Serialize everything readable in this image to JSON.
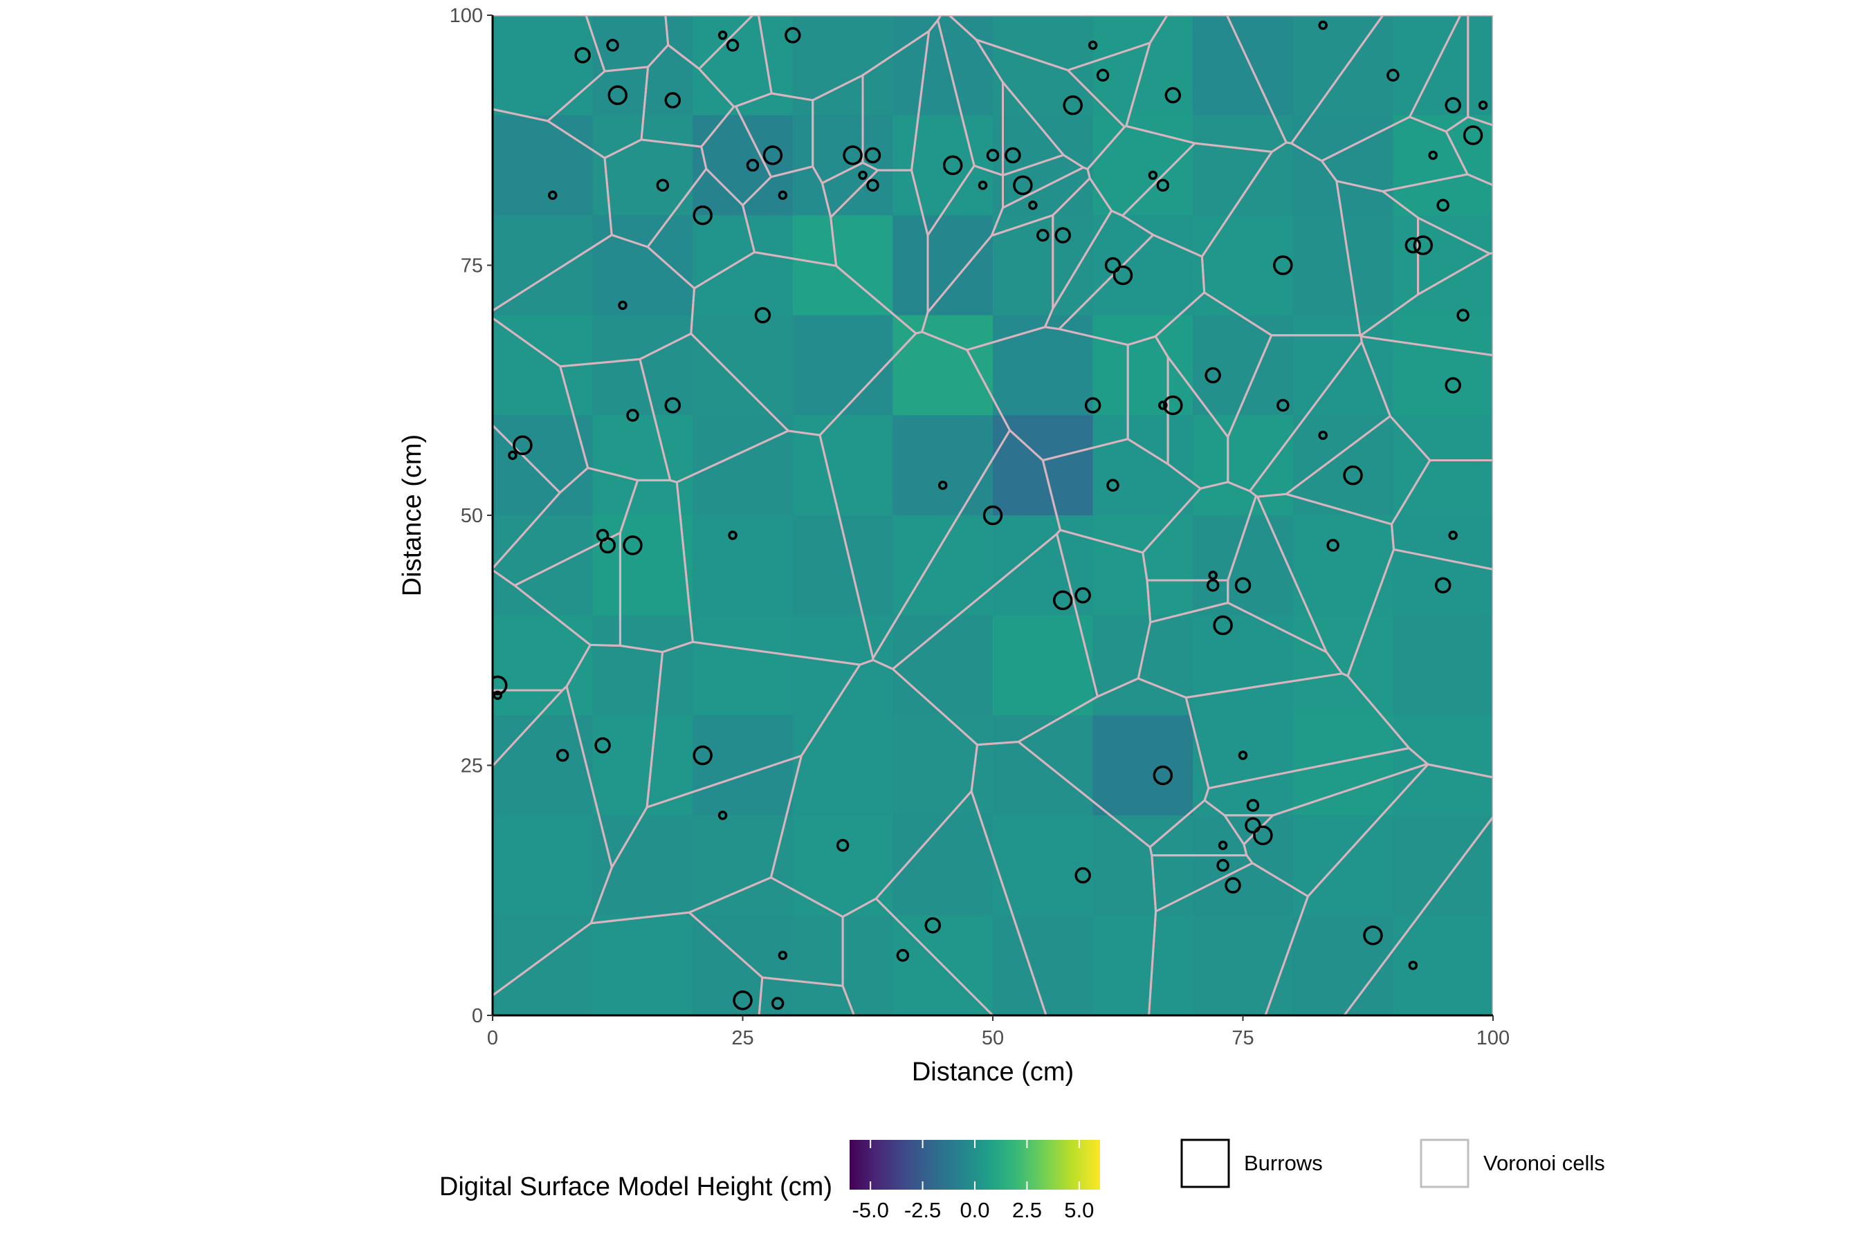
{
  "chart_data": {
    "type": "heatmap",
    "title": "",
    "xlabel": "Distance (cm)",
    "ylabel": "Distance (cm)",
    "xlim": [
      0,
      100
    ],
    "ylim": [
      0,
      100
    ],
    "x_ticks": [
      "0",
      "25",
      "50",
      "75",
      "100"
    ],
    "y_ticks": [
      "0",
      "25",
      "50",
      "75",
      "100"
    ],
    "grid": false,
    "background_color": "#21908d",
    "colorbar": {
      "title": "Digital Surface Model Height (cm)",
      "range": [
        -6,
        6
      ],
      "tick_labels": [
        "-5.0",
        "-2.5",
        "0.0",
        "2.5",
        "5.0"
      ],
      "palette": [
        "#440154",
        "#482878",
        "#3e4a89",
        "#31688e",
        "#26828e",
        "#1f9e89",
        "#35b779",
        "#6ece58",
        "#b5de2b",
        "#fde725"
      ]
    },
    "legend": [
      {
        "label": "Burrows",
        "color": "#000000"
      },
      {
        "label": "Voronoi cells",
        "color": "#bebebe"
      }
    ],
    "voronoi_color": "#d8b4bf",
    "burrows": [
      [
        6,
        82
      ],
      [
        12,
        97
      ],
      [
        9,
        96
      ],
      [
        12.5,
        92
      ],
      [
        13,
        71
      ],
      [
        17,
        83
      ],
      [
        18,
        91.5
      ],
      [
        21,
        80
      ],
      [
        23,
        98
      ],
      [
        24,
        97
      ],
      [
        27,
        70
      ],
      [
        28,
        86
      ],
      [
        29,
        82
      ],
      [
        26,
        85
      ],
      [
        30,
        98
      ],
      [
        36,
        86
      ],
      [
        37,
        84
      ],
      [
        38,
        83
      ],
      [
        38,
        86
      ],
      [
        46,
        85
      ],
      [
        49,
        83
      ],
      [
        50,
        86
      ],
      [
        52,
        86
      ],
      [
        53,
        83
      ],
      [
        54,
        81
      ],
      [
        55,
        78
      ],
      [
        57,
        78
      ],
      [
        58,
        91
      ],
      [
        60,
        97
      ],
      [
        61,
        94
      ],
      [
        62,
        75
      ],
      [
        63,
        74
      ],
      [
        66,
        84
      ],
      [
        67,
        83
      ],
      [
        68,
        92
      ],
      [
        79,
        75
      ],
      [
        83,
        99
      ],
      [
        90,
        94
      ],
      [
        92,
        77
      ],
      [
        93,
        77
      ],
      [
        94,
        86
      ],
      [
        95,
        81
      ],
      [
        96,
        91
      ],
      [
        98,
        88
      ],
      [
        99,
        91
      ],
      [
        97,
        70
      ],
      [
        96,
        63
      ],
      [
        86,
        54
      ],
      [
        83,
        58
      ],
      [
        79,
        61
      ],
      [
        72,
        64
      ],
      [
        68,
        61
      ],
      [
        67,
        61
      ],
      [
        62,
        53
      ],
      [
        60,
        61
      ],
      [
        50,
        50
      ],
      [
        45,
        53
      ],
      [
        14,
        60
      ],
      [
        18,
        61
      ],
      [
        3,
        57
      ],
      [
        2,
        56
      ],
      [
        11,
        48
      ],
      [
        11.5,
        47
      ],
      [
        14,
        47
      ],
      [
        24,
        48
      ],
      [
        7,
        26
      ],
      [
        11,
        27
      ],
      [
        21,
        26
      ],
      [
        23,
        20
      ],
      [
        35,
        17
      ],
      [
        59,
        14
      ],
      [
        67,
        24
      ],
      [
        72,
        44
      ],
      [
        72,
        43
      ],
      [
        75,
        43
      ],
      [
        73,
        39
      ],
      [
        75,
        26
      ],
      [
        76,
        21
      ],
      [
        76,
        19
      ],
      [
        77,
        18
      ],
      [
        73,
        17
      ],
      [
        73,
        15
      ],
      [
        74,
        13
      ],
      [
        88,
        8
      ],
      [
        92,
        5
      ],
      [
        41,
        6
      ],
      [
        44,
        9
      ],
      [
        25,
        1.5
      ],
      [
        29,
        6
      ],
      [
        28.5,
        1.2
      ],
      [
        59,
        42
      ],
      [
        57,
        41.5
      ],
      [
        96,
        48
      ],
      [
        84,
        47
      ],
      [
        95,
        43
      ],
      [
        0.5,
        33
      ],
      [
        0.5,
        32
      ]
    ],
    "heights": [
      [
        0.2,
        -0.1,
        0.3,
        0.0,
        -0.2,
        0.1,
        0.4,
        -0.3,
        0.0,
        0.2
      ],
      [
        -0.4,
        0.1,
        -0.6,
        -0.2,
        0.3,
        0.0,
        0.5,
        0.1,
        -0.1,
        0.6
      ],
      [
        0.0,
        -0.3,
        0.2,
        0.8,
        -0.5,
        0.1,
        0.2,
        0.3,
        0.0,
        0.4
      ],
      [
        0.3,
        0.0,
        0.1,
        -0.2,
        1.0,
        -0.3,
        0.6,
        0.0,
        0.2,
        0.5
      ],
      [
        -0.2,
        0.4,
        0.0,
        0.3,
        -0.4,
        -1.5,
        0.2,
        0.5,
        0.1,
        0.3
      ],
      [
        0.1,
        0.6,
        0.2,
        0.0,
        0.3,
        0.2,
        0.4,
        0.0,
        0.3,
        0.2
      ],
      [
        0.4,
        0.1,
        0.3,
        0.2,
        0.0,
        0.6,
        0.1,
        0.2,
        0.4,
        0.1
      ],
      [
        0.0,
        0.3,
        -0.2,
        0.2,
        0.1,
        0.0,
        -0.8,
        0.2,
        0.5,
        0.3
      ],
      [
        0.2,
        0.0,
        0.1,
        0.3,
        0.0,
        0.2,
        0.1,
        0.0,
        0.2,
        0.1
      ],
      [
        0.1,
        0.2,
        0.0,
        0.1,
        0.3,
        0.0,
        0.2,
        0.1,
        0.0,
        0.2
      ]
    ]
  }
}
